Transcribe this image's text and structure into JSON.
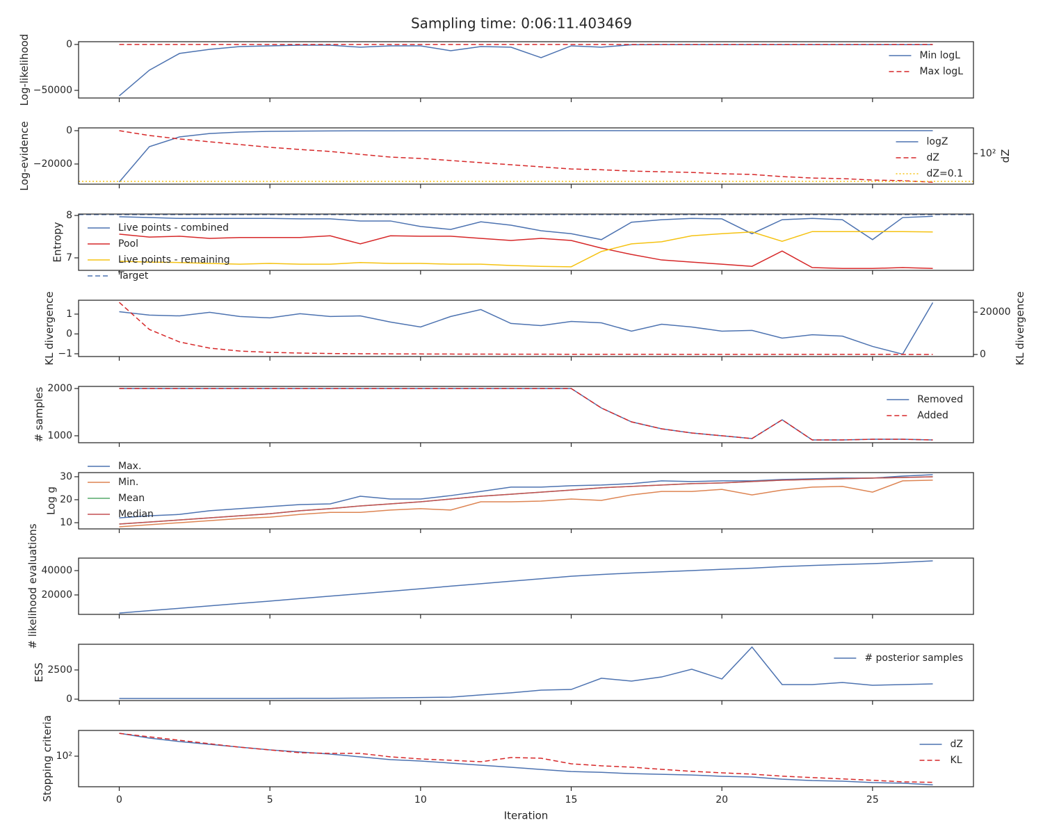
{
  "title": "Sampling time: 0:06:11.403469",
  "chart_data": [
    {
      "type": "line",
      "ylabel": "Log-likelihood",
      "legend": "upper right",
      "x": [
        0,
        1,
        2,
        3,
        4,
        5,
        6,
        7,
        8,
        9,
        10,
        11,
        12,
        13,
        14,
        15,
        16,
        17,
        18,
        19,
        20,
        21,
        22,
        23,
        24,
        25,
        26,
        27
      ],
      "xlim": [
        -1.35,
        28.35
      ],
      "xticks": [
        0,
        5,
        10,
        15,
        20,
        25
      ],
      "ylim": [
        -58300,
        3000
      ],
      "yticks": [
        {
          "value": -50000,
          "label": "−50000"
        },
        0
      ],
      "series": [
        {
          "name": "Min logL",
          "color": "#4c72b0",
          "style": "solid",
          "values": [
            -56000,
            -28000,
            -9800,
            -5300,
            -2300,
            -1500,
            -800,
            -800,
            -3000,
            -1500,
            -1500,
            -6800,
            -2300,
            -3000,
            -14400,
            -1500,
            -3000,
            -300,
            -200,
            -200,
            -200,
            -200,
            -200,
            -200,
            -200,
            -200,
            -200,
            -200
          ]
        },
        {
          "name": "Max logL",
          "color": "#d62728",
          "style": "dashed",
          "values": [
            0,
            0,
            0,
            0,
            0,
            0,
            0,
            0,
            0,
            0,
            0,
            0,
            0,
            0,
            0,
            0,
            0,
            0,
            0,
            0,
            0,
            0,
            0,
            0,
            0,
            0,
            0,
            0
          ]
        }
      ]
    },
    {
      "type": "line",
      "ylabel": "Log-evidence",
      "y2label": "dZ",
      "legend": "upper right",
      "x": [
        0,
        1,
        2,
        3,
        4,
        5,
        6,
        7,
        8,
        9,
        10,
        11,
        12,
        13,
        14,
        15,
        16,
        17,
        18,
        19,
        20,
        21,
        22,
        23,
        24,
        25,
        26,
        27
      ],
      "xlim": [
        -1.35,
        28.35
      ],
      "xticks": [
        0,
        5,
        10,
        15,
        20,
        25
      ],
      "ylim": [
        -32100,
        1670
      ],
      "yticks": [
        {
          "value": -20000,
          "label": "−20000"
        },
        0
      ],
      "y2lim": [
        0.05,
        60000
      ],
      "y2log": true,
      "y2ticks": [
        {
          "value": 100,
          "label": "10²"
        }
      ],
      "series": [
        {
          "name": "logZ",
          "color": "#4c72b0",
          "style": "solid",
          "values": [
            -30800,
            -9600,
            -3750,
            -1700,
            -830,
            -400,
            -250,
            -150,
            -100,
            -80,
            -60,
            -50,
            -40,
            -30,
            -25,
            -20,
            -18,
            -15,
            -12,
            -10,
            -9,
            -8,
            -7,
            -6,
            -5,
            -4,
            -3,
            -2
          ]
        },
        {
          "name": "dZ",
          "color": "#d62728",
          "style": "dashed",
          "axis": "y2",
          "values": [
            30000,
            9000,
            3800,
            1900,
            950,
            480,
            280,
            170,
            84,
            42,
            30,
            18,
            10.5,
            6.3,
            3.7,
            2.2,
            1.8,
            1.3,
            1.1,
            0.93,
            0.67,
            0.56,
            0.33,
            0.23,
            0.2,
            0.14,
            0.12,
            0.08
          ]
        },
        {
          "name": "dZ=0.1",
          "color": "#f5c211",
          "style": "dotted",
          "axis": "y2",
          "hline": 0.1
        }
      ]
    },
    {
      "type": "line",
      "ylabel": "Entropy",
      "legend": "upper left",
      "x": [
        0,
        1,
        2,
        3,
        4,
        5,
        6,
        7,
        8,
        9,
        10,
        11,
        12,
        13,
        14,
        15,
        16,
        17,
        18,
        19,
        20,
        21,
        22,
        23,
        24,
        25,
        26,
        27
      ],
      "xlim": [
        -1.35,
        28.35
      ],
      "xticks": [
        0,
        5,
        10,
        15,
        20,
        25
      ],
      "ylim": [
        6.705,
        8.033
      ],
      "yticks": [
        7,
        8
      ],
      "series": [
        {
          "name": "Live points - combined",
          "color": "#4c72b0",
          "style": "solid",
          "values": [
            7.97,
            7.95,
            7.93,
            7.93,
            7.93,
            7.93,
            7.92,
            7.92,
            7.87,
            7.87,
            7.74,
            7.67,
            7.85,
            7.77,
            7.64,
            7.57,
            7.43,
            7.84,
            7.9,
            7.93,
            7.92,
            7.57,
            7.9,
            7.93,
            7.9,
            7.43,
            7.95,
            7.98
          ]
        },
        {
          "name": "Pool",
          "color": "#d62728",
          "style": "solid",
          "values": [
            7.56,
            7.49,
            7.51,
            7.46,
            7.48,
            7.48,
            7.48,
            7.52,
            7.33,
            7.52,
            7.51,
            7.51,
            7.46,
            7.41,
            7.46,
            7.41,
            7.23,
            7.08,
            6.95,
            6.9,
            6.85,
            6.8,
            7.16,
            6.77,
            6.75,
            6.75,
            6.77,
            6.75
          ]
        },
        {
          "name": "Live points - remaining",
          "color": "#f5c211",
          "style": "solid",
          "values": [
            6.92,
            6.9,
            6.89,
            6.87,
            6.85,
            6.87,
            6.85,
            6.85,
            6.89,
            6.87,
            6.87,
            6.85,
            6.85,
            6.82,
            6.8,
            6.79,
            7.15,
            7.33,
            7.38,
            7.52,
            7.57,
            7.61,
            7.39,
            7.62,
            7.62,
            7.62,
            7.62,
            7.61
          ]
        },
        {
          "name": "Target",
          "color": "#4c72b0",
          "style": "dashed",
          "hline": 8.02
        }
      ]
    },
    {
      "type": "line",
      "ylabel": "KL divergence",
      "y2label": "KL divergence",
      "x": [
        0,
        1,
        2,
        3,
        4,
        5,
        6,
        7,
        8,
        9,
        10,
        11,
        12,
        13,
        14,
        15,
        16,
        17,
        18,
        19,
        20,
        21,
        22,
        23,
        24,
        25,
        26,
        27
      ],
      "xlim": [
        -1.35,
        28.35
      ],
      "xticks": [
        0,
        5,
        10,
        15,
        20,
        25
      ],
      "ylim": [
        -1.14,
        1.7
      ],
      "yticks": [
        {
          "value": -1,
          "label": "−1"
        },
        0,
        1
      ],
      "y2lim": [
        -980,
        25600
      ],
      "y2ticks": [
        0,
        20000
      ],
      "series": [
        {
          "color": "#4c72b0",
          "style": "solid",
          "values": [
            1.12,
            0.95,
            0.91,
            1.09,
            0.88,
            0.81,
            1.02,
            0.88,
            0.91,
            0.6,
            0.35,
            0.88,
            1.23,
            0.53,
            0.42,
            0.63,
            0.56,
            0.14,
            0.49,
            0.35,
            0.14,
            0.18,
            -0.21,
            -0.04,
            -0.11,
            -0.63,
            -1.02,
            1.58
          ]
        },
        {
          "color": "#d62728",
          "style": "dashed",
          "axis": "y2",
          "values": [
            24600,
            11800,
            5900,
            3000,
            1600,
            1000,
            650,
            450,
            350,
            280,
            230,
            190,
            160,
            140,
            120,
            100,
            90,
            80,
            70,
            60,
            55,
            50,
            45,
            40,
            35,
            30,
            25,
            20
          ]
        }
      ]
    },
    {
      "type": "line",
      "ylabel": "# samples",
      "legend": "upper right",
      "x": [
        0,
        1,
        2,
        3,
        4,
        5,
        6,
        7,
        8,
        9,
        10,
        11,
        12,
        13,
        14,
        15,
        16,
        17,
        18,
        19,
        20,
        21,
        22,
        23,
        24,
        25,
        26,
        27
      ],
      "xlim": [
        -1.35,
        28.35
      ],
      "xticks": [
        0,
        5,
        10,
        15,
        20,
        25
      ],
      "ylim": [
        853,
        2044
      ],
      "yticks": [
        1000,
        2000
      ],
      "series": [
        {
          "name": "Removed",
          "color": "#4c72b0",
          "style": "solid",
          "values": [
            2000,
            2000,
            2000,
            2000,
            2000,
            2000,
            2000,
            2000,
            2000,
            2000,
            2000,
            2000,
            2000,
            2000,
            2000,
            2000,
            1588,
            1294,
            1147,
            1059,
            1000,
            941,
            1338,
            912,
            912,
            926,
            926,
            912
          ]
        },
        {
          "name": "Added",
          "color": "#d62728",
          "style": "dashed",
          "values": [
            2000,
            2000,
            2000,
            2000,
            2000,
            2000,
            2000,
            2000,
            2000,
            2000,
            2000,
            2000,
            2000,
            2000,
            2000,
            2000,
            1588,
            1294,
            1147,
            1059,
            1000,
            941,
            1338,
            912,
            912,
            926,
            926,
            912
          ]
        }
      ]
    },
    {
      "type": "line",
      "ylabel": "Log g",
      "legend": "upper left",
      "x": [
        0,
        1,
        2,
        3,
        4,
        5,
        6,
        7,
        8,
        9,
        10,
        11,
        12,
        13,
        14,
        15,
        16,
        17,
        18,
        19,
        20,
        21,
        22,
        23,
        24,
        25,
        26,
        27
      ],
      "xlim": [
        -1.35,
        28.35
      ],
      "xticks": [
        0,
        5,
        10,
        15,
        20,
        25
      ],
      "ylim": [
        7.3,
        31.8
      ],
      "yticks": [
        10,
        20,
        30
      ],
      "series": [
        {
          "name": "Max.",
          "color": "#4c72b0",
          "style": "solid",
          "values": [
            12.1,
            13,
            13.6,
            15.2,
            16.1,
            17,
            17.9,
            18.2,
            21.5,
            20.3,
            20.3,
            21.8,
            23.6,
            25.5,
            25.5,
            26.1,
            26.4,
            27,
            28.2,
            27.9,
            28.2,
            28.2,
            28.8,
            29.1,
            29.4,
            29.4,
            30.3,
            30.9
          ]
        },
        {
          "name": "Min.",
          "color": "#dd8452",
          "style": "solid",
          "values": [
            8.2,
            9.1,
            10,
            10.9,
            11.8,
            12.4,
            13.6,
            14.5,
            14.5,
            15.5,
            16.1,
            15.5,
            19.1,
            19.1,
            19.4,
            20.3,
            19.7,
            22.1,
            23.6,
            23.6,
            24.5,
            22.1,
            24.2,
            25.5,
            25.8,
            23.3,
            28.2,
            28.5
          ]
        },
        {
          "name": "Mean",
          "color": "#55a868",
          "style": "solid",
          "values": [
            9.4,
            10.3,
            11.2,
            12.1,
            13,
            13.9,
            15.2,
            16.1,
            17.3,
            18.2,
            19.1,
            20.3,
            21.5,
            22.4,
            23.3,
            24.2,
            25.2,
            25.8,
            26.4,
            27,
            27.3,
            27.9,
            28.5,
            28.8,
            29.1,
            29.4,
            29.7,
            30
          ]
        },
        {
          "name": "Median",
          "color": "#c44e52",
          "style": "solid",
          "values": [
            9.4,
            10.3,
            11.2,
            12.1,
            13,
            13.9,
            15.2,
            16.1,
            17.3,
            18.2,
            19.1,
            20.3,
            21.5,
            22.4,
            23.3,
            24.2,
            25.2,
            25.8,
            26.4,
            27,
            27.3,
            27.9,
            28.5,
            28.8,
            29.1,
            29.4,
            29.7,
            30
          ]
        }
      ]
    },
    {
      "type": "line",
      "ylabel": "# likelihood evaluations",
      "x": [
        0,
        1,
        2,
        3,
        4,
        5,
        6,
        7,
        8,
        9,
        10,
        11,
        12,
        13,
        14,
        15,
        16,
        17,
        18,
        19,
        20,
        21,
        22,
        23,
        24,
        25,
        26,
        27
      ],
      "xlim": [
        -1.35,
        28.35
      ],
      "xticks": [
        0,
        5,
        10,
        15,
        20,
        25
      ],
      "ylim": [
        4000,
        50300
      ],
      "yticks": [
        20000,
        40000
      ],
      "series": [
        {
          "color": "#4c72b0",
          "style": "solid",
          "values": [
            5100,
            7100,
            9000,
            11000,
            13000,
            14900,
            17000,
            19000,
            21000,
            23000,
            25100,
            27200,
            29200,
            31300,
            33300,
            35400,
            36800,
            38000,
            39000,
            40000,
            41100,
            42000,
            43300,
            44200,
            45000,
            45700,
            46800,
            48000
          ]
        }
      ]
    },
    {
      "type": "line",
      "ylabel": "ESS",
      "legend": "upper right",
      "x": [
        0,
        1,
        2,
        3,
        4,
        5,
        6,
        7,
        8,
        9,
        10,
        11,
        12,
        13,
        14,
        15,
        16,
        17,
        18,
        19,
        20,
        21,
        22,
        23,
        24,
        25,
        26,
        27
      ],
      "xlim": [
        -1.35,
        28.35
      ],
      "xticks": [
        0,
        5,
        10,
        15,
        20,
        25
      ],
      "ylim": [
        -120,
        4700
      ],
      "yticks": [
        0,
        2500
      ],
      "series": [
        {
          "name": "# posterior samples",
          "color": "#4c72b0",
          "style": "solid",
          "values": [
            60,
            60,
            60,
            60,
            60,
            60,
            70,
            70,
            90,
            110,
            140,
            170,
            360,
            540,
            770,
            830,
            1790,
            1550,
            1900,
            2560,
            1730,
            4460,
            1250,
            1250,
            1430,
            1190,
            1250,
            1310
          ]
        }
      ]
    },
    {
      "type": "line",
      "ylabel": "Stopping criteria",
      "xlabel": "Iteration",
      "legend": "upper right",
      "x": [
        0,
        1,
        2,
        3,
        4,
        5,
        6,
        7,
        8,
        9,
        10,
        11,
        12,
        13,
        14,
        15,
        16,
        17,
        18,
        19,
        20,
        21,
        22,
        23,
        24,
        25,
        26,
        27
      ],
      "xlim": [
        -1.35,
        28.35
      ],
      "xticks": [
        0,
        5,
        10,
        15,
        20,
        25
      ],
      "ylim": [
        0.05,
        60000
      ],
      "ylog": true,
      "yticks": [
        {
          "value": 100,
          "label": "10²"
        }
      ],
      "series": [
        {
          "name": "dZ",
          "color": "#4c72b0",
          "style": "solid",
          "values": [
            30000,
            9000,
            3800,
            1900,
            950,
            480,
            280,
            170,
            84,
            42,
            30,
            18,
            10.5,
            6.3,
            3.7,
            2.2,
            1.8,
            1.3,
            1.1,
            0.93,
            0.67,
            0.56,
            0.33,
            0.23,
            0.2,
            0.14,
            0.12,
            0.08
          ]
        },
        {
          "name": "KL",
          "color": "#d62728",
          "style": "dashed",
          "values": [
            29000,
            12300,
            5200,
            2200,
            930,
            470,
            235,
            200,
            200,
            85,
            50,
            36,
            25,
            71,
            60,
            15,
            9.1,
            6.5,
            3.8,
            2.3,
            1.6,
            1.15,
            0.69,
            0.49,
            0.35,
            0.25,
            0.17,
            0.15
          ]
        }
      ]
    }
  ]
}
